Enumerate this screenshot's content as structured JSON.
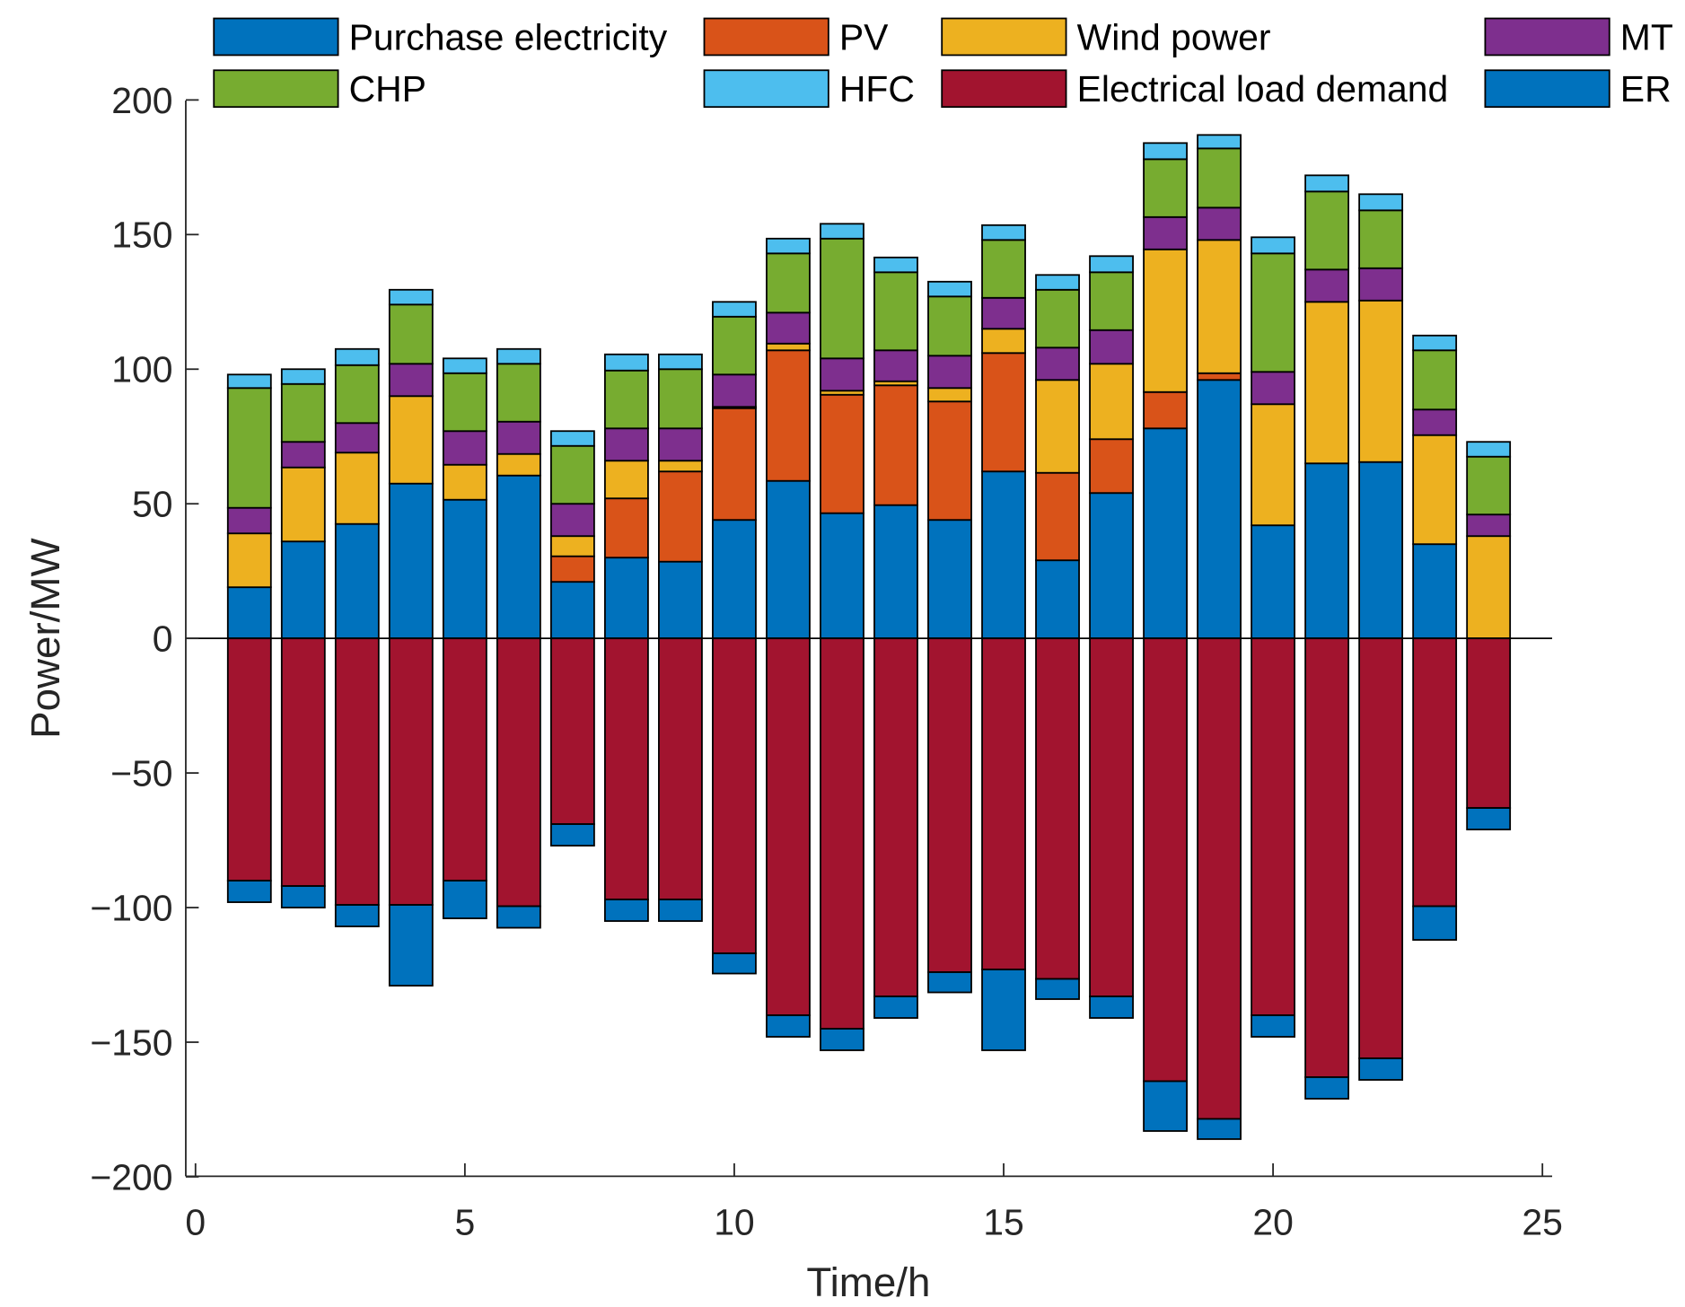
{
  "chart_data": {
    "type": "bar",
    "stacked": true,
    "title": "",
    "xlabel": "Time/h",
    "ylabel": "Power/MW",
    "xlim": [
      -0.2,
      25.2
    ],
    "ylim": [
      -200,
      200
    ],
    "xticks": [
      0,
      5,
      10,
      15,
      20,
      25
    ],
    "yticks": [
      200,
      150,
      100,
      50,
      0,
      -50,
      -100,
      -150,
      -200
    ],
    "ytick_labels": [
      "200",
      "150",
      "100",
      "50",
      "0",
      "−50",
      "−100",
      "−150",
      "−200"
    ],
    "legend_placement": "top",
    "x": [
      1,
      2,
      3,
      4,
      5,
      6,
      7,
      8,
      9,
      10,
      11,
      12,
      13,
      14,
      15,
      16,
      17,
      18,
      19,
      20,
      21,
      22,
      23,
      24
    ],
    "series": [
      {
        "name": "Purchase electricity",
        "color": "#0072BD",
        "values": [
          19,
          36,
          42.5,
          57.5,
          51.5,
          60.5,
          21,
          30,
          28.5,
          44,
          58.5,
          46.5,
          49.5,
          44,
          62,
          29,
          54,
          78,
          96,
          42,
          65,
          65.5,
          35,
          0
        ]
      },
      {
        "name": "PV",
        "color": "#D95319",
        "values": [
          0,
          0,
          0,
          0,
          0,
          0,
          9.5,
          22,
          33.5,
          41.5,
          48.5,
          44,
          44.5,
          44,
          44,
          32.5,
          20,
          13.5,
          2.5,
          0,
          0,
          0,
          0,
          0
        ]
      },
      {
        "name": "Wind power",
        "color": "#EDB120",
        "values": [
          20,
          27.5,
          26.5,
          32.5,
          13,
          8,
          7.5,
          14,
          4,
          0.5,
          2.5,
          1.5,
          1.5,
          5,
          9,
          34.5,
          28,
          53,
          49.5,
          45,
          60,
          60,
          40.5,
          38
        ]
      },
      {
        "name": "MT",
        "color": "#7E2F8E",
        "values": [
          9.5,
          9.5,
          11,
          12,
          12.5,
          12,
          12,
          12,
          12,
          12,
          11.5,
          12,
          11.5,
          12,
          11.5,
          12,
          12.5,
          12,
          12,
          12,
          12,
          12,
          9.5,
          8
        ]
      },
      {
        "name": "CHP",
        "color": "#77AC30",
        "values": [
          44.5,
          21.5,
          21.5,
          22,
          21.5,
          21.5,
          21.5,
          21.5,
          22,
          21.5,
          22,
          44.5,
          29,
          22,
          21.5,
          21.5,
          21.5,
          21.5,
          22,
          44,
          29,
          21.5,
          22,
          21.5
        ]
      },
      {
        "name": "HFC",
        "color": "#4DBEEE",
        "values": [
          5,
          5.5,
          6,
          5.5,
          5.5,
          5.5,
          5.5,
          6,
          5.5,
          5.5,
          5.5,
          5.5,
          5.5,
          5.5,
          5.5,
          5.5,
          6,
          6,
          5,
          6,
          6,
          6,
          5.5,
          5.5
        ]
      },
      {
        "name": "Electrical load demand",
        "color": "#A2142F",
        "values": [
          -90,
          -92,
          -99,
          -99,
          -90,
          -99.5,
          -69,
          -97,
          -97,
          -117,
          -140,
          -145,
          -133,
          -124,
          -123,
          -126.5,
          -133,
          -164.5,
          -178.5,
          -140,
          -163,
          -156,
          -99.5,
          -63
        ]
      },
      {
        "name": "ER",
        "color": "#0072BD",
        "values": [
          -8,
          -8,
          -8,
          -30,
          -14,
          -8,
          -8,
          -8,
          -8,
          -7.5,
          -8,
          -8,
          -8,
          -7.5,
          -30,
          -7.5,
          -8,
          -18.5,
          -7.5,
          -8,
          -8,
          -8,
          -12.5,
          -8
        ]
      }
    ],
    "legend_order": [
      "Purchase electricity",
      "PV",
      "Wind power",
      "MT",
      "CHP",
      "HFC",
      "Electrical load demand",
      "ER"
    ]
  }
}
